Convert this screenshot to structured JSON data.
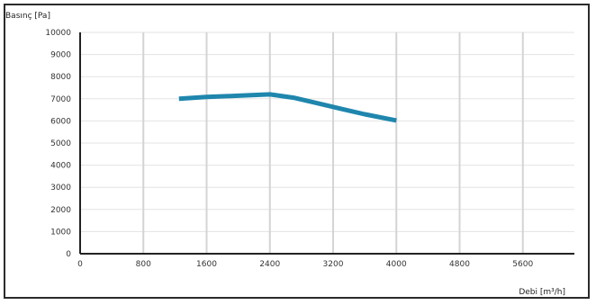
{
  "chart_data": {
    "type": "line",
    "title": "",
    "xlabel": "Debi [m³/h]",
    "ylabel": "Basınç [Pa]",
    "xlim": [
      0,
      6300
    ],
    "ylim": [
      0,
      10000
    ],
    "x_ticks": [
      0,
      800,
      1600,
      2400,
      3200,
      4000,
      4800,
      5600
    ],
    "y_ticks": [
      0,
      1000,
      2000,
      3000,
      4000,
      5000,
      6000,
      7000,
      8000,
      9000,
      10000
    ],
    "grid": {
      "vertical": true,
      "horizontal": true
    },
    "series": [
      {
        "color": "#1f86ad",
        "points": [
          {
            "x": 1250,
            "y": 7000
          },
          {
            "x": 1600,
            "y": 7080
          },
          {
            "x": 2000,
            "y": 7140
          },
          {
            "x": 2400,
            "y": 7200
          },
          {
            "x": 2700,
            "y": 7050
          },
          {
            "x": 3000,
            "y": 6800
          },
          {
            "x": 3300,
            "y": 6550
          },
          {
            "x": 3600,
            "y": 6300
          },
          {
            "x": 4000,
            "y": 6020
          }
        ]
      }
    ]
  }
}
